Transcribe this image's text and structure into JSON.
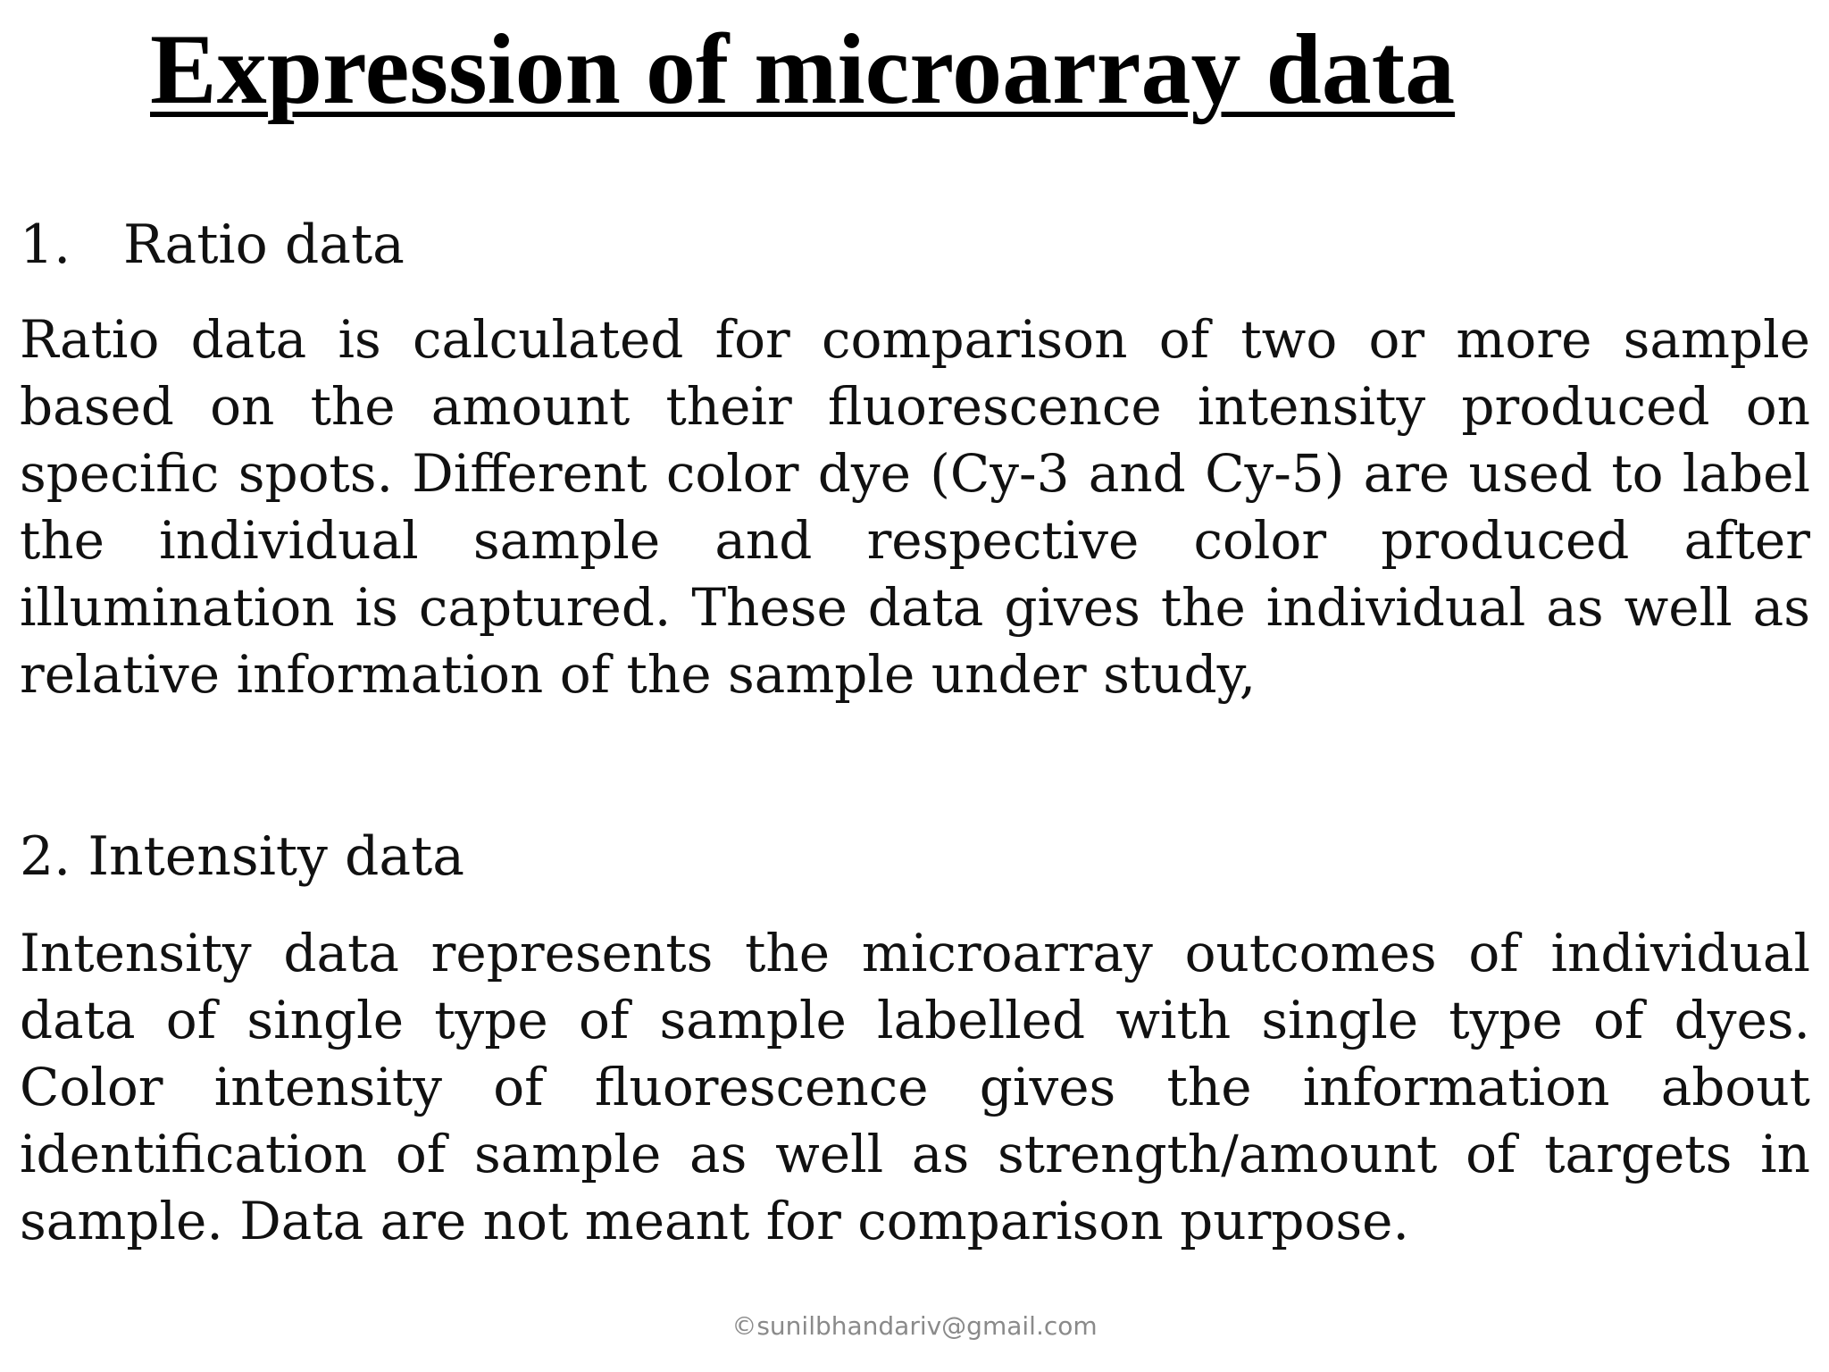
{
  "slide": {
    "title": "Expression of microarray data",
    "sections": [
      {
        "number": "1.",
        "heading": "Ratio data",
        "body": "Ratio data is calculated for comparison of two or more sample based on the amount their fluorescence intensity produced on specific spots. Different color dye (Cy-3 and Cy-5) are used to label the individual sample and respective color produced after illumination is captured. These data gives the individual as well as relative information of the sample under study,"
      },
      {
        "number": "2.",
        "heading": "Intensity data",
        "body": "Intensity data represents the microarray outcomes of individual data of single type of sample labelled with single type of dyes. Color intensity of fluorescence gives the information about identification of sample as well as strength/amount of targets in sample. Data are not meant for comparison purpose."
      }
    ],
    "footer": "©sunilbhandariv@gmail.com"
  }
}
